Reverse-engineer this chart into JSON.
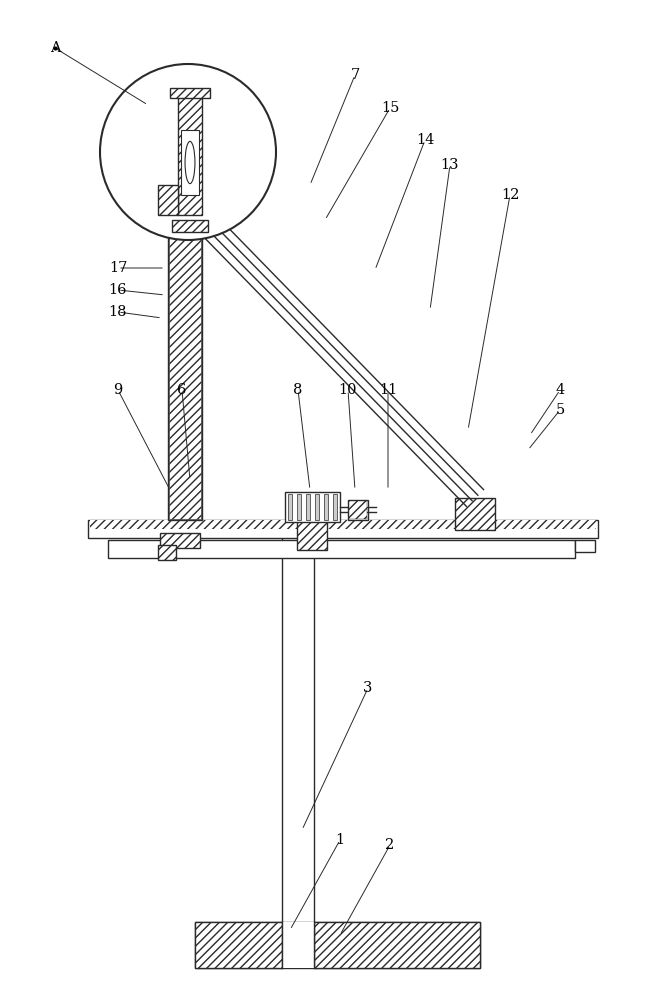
{
  "fig_width": 6.63,
  "fig_height": 10.0,
  "dpi": 100,
  "bg_color": "#ffffff",
  "lc": "#2a2a2a",
  "lw": 1.0
}
